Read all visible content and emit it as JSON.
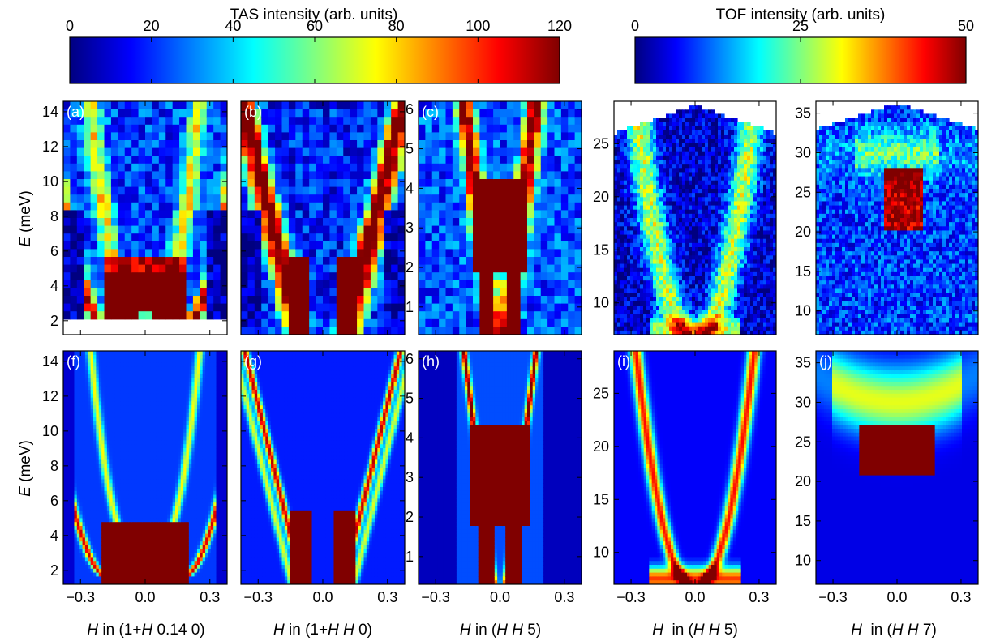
{
  "chart_data": {
    "type": "heatmap",
    "colorbars": [
      {
        "id": "tas",
        "title": "TAS intensity (arb. units)",
        "range": [
          0,
          120
        ],
        "ticks": [
          0,
          20,
          40,
          60,
          80,
          100,
          120
        ],
        "colormap": "jet"
      },
      {
        "id": "tof",
        "title": "TOF intensity (arb. units)",
        "range": [
          0,
          50
        ],
        "ticks": [
          0,
          25,
          50
        ],
        "colormap": "jet"
      }
    ],
    "ylabel": {
      "italic": "E",
      "rest": " (meV)"
    },
    "xaxis": {
      "ticks": [
        -0.3,
        0.0,
        0.3
      ],
      "tick_labels": [
        "−0.3",
        "0.0",
        "0.3"
      ]
    },
    "panels": [
      {
        "id": "a",
        "label": "(a)",
        "row": "measured",
        "x_range": [
          -0.38,
          0.38
        ],
        "y_range": [
          1.2,
          14.6
        ],
        "y_ticks": [
          2,
          4,
          6,
          8,
          10,
          12,
          14
        ],
        "resolution": "coarse",
        "features": "split-dispersion",
        "instrument": "TAS"
      },
      {
        "id": "b",
        "label": "(b)",
        "row": "measured",
        "x_range": [
          -0.38,
          0.38
        ],
        "y_range": [
          1.2,
          14.6
        ],
        "y_ticks": [
          2,
          4,
          6,
          8,
          10,
          12,
          14
        ],
        "resolution": "coarse",
        "features": "double-dispersion",
        "instrument": "TAS"
      },
      {
        "id": "c",
        "label": "(c)",
        "row": "measured",
        "x_range": [
          -0.38,
          0.38
        ],
        "y_range": [
          0.3,
          6.2
        ],
        "y_ticks": [
          1,
          2,
          3,
          4,
          5,
          6
        ],
        "resolution": "coarse",
        "features": "v-dispersion",
        "instrument": "TAS"
      },
      {
        "id": "d",
        "label": "(d)",
        "row": "measured",
        "x_range": [
          -0.38,
          0.38
        ],
        "y_range": [
          7,
          29
        ],
        "y_ticks": [
          10,
          15,
          20,
          25
        ],
        "resolution": "fine",
        "features": "u-dispersion",
        "instrument": "TOF"
      },
      {
        "id": "e",
        "label": "(e)",
        "row": "measured",
        "x_range": [
          -0.38,
          0.38
        ],
        "y_range": [
          7,
          36.5
        ],
        "y_ticks": [
          10,
          15,
          20,
          25,
          30,
          35
        ],
        "resolution": "fine",
        "features": "bowl",
        "instrument": "TOF"
      },
      {
        "id": "f",
        "label": "(f)",
        "row": "simulated",
        "x_range": [
          -0.38,
          0.38
        ],
        "y_range": [
          1.2,
          14.6
        ],
        "y_ticks": [
          2,
          4,
          6,
          8,
          10,
          12,
          14
        ],
        "resolution": "smooth",
        "features": "split-dispersion",
        "instrument": "TAS",
        "xlabel": {
          "italic": "H",
          "rest": " in (1+",
          "italic2": "H",
          "rest2": " 0.14 0)"
        }
      },
      {
        "id": "g",
        "label": "(g)",
        "row": "simulated",
        "x_range": [
          -0.38,
          0.38
        ],
        "y_range": [
          1.2,
          14.6
        ],
        "y_ticks": [
          2,
          4,
          6,
          8,
          10,
          12,
          14
        ],
        "resolution": "smooth",
        "features": "double-dispersion",
        "instrument": "TAS",
        "xlabel": {
          "italic": "H",
          "rest": " in (1+",
          "italic2": "H H",
          "rest2": " 0)"
        }
      },
      {
        "id": "h",
        "label": "(h)",
        "row": "simulated",
        "x_range": [
          -0.38,
          0.38
        ],
        "y_range": [
          0.3,
          6.2
        ],
        "y_ticks": [
          1,
          2,
          3,
          4,
          5,
          6
        ],
        "resolution": "smooth",
        "features": "v-dispersion",
        "instrument": "TAS",
        "xlabel": {
          "italic": "H",
          "rest": " in (",
          "italic2": "H H",
          "rest2": " 5)"
        }
      },
      {
        "id": "i",
        "label": "(i)",
        "row": "simulated",
        "x_range": [
          -0.38,
          0.38
        ],
        "y_range": [
          7,
          29
        ],
        "y_ticks": [
          10,
          15,
          20,
          25
        ],
        "resolution": "smooth",
        "features": "u-dispersion",
        "instrument": "TOF",
        "xlabel": {
          "italic": "H",
          "rest": "  in (",
          "italic2": "H H",
          "rest2": " 5)"
        }
      },
      {
        "id": "j",
        "label": "(j)",
        "row": "simulated",
        "x_range": [
          -0.38,
          0.38
        ],
        "y_range": [
          7,
          36.5
        ],
        "y_ticks": [
          10,
          15,
          20,
          25,
          30,
          35
        ],
        "resolution": "smooth",
        "features": "bowl",
        "instrument": "TOF",
        "xlabel": {
          "italic": "H",
          "rest": "  in (",
          "italic2": "H H",
          "rest2": " 7)"
        }
      }
    ]
  }
}
